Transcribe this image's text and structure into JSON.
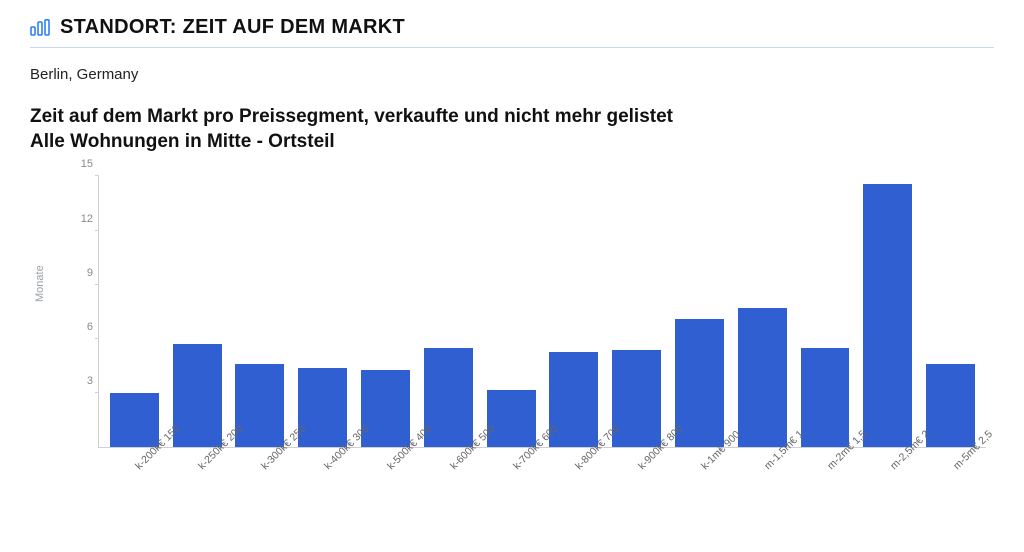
{
  "header": {
    "icon": "bar-chart-icon",
    "icon_color": "#2f7ef6",
    "title": "STANDORT: ZEIT AUF DEM MARKT",
    "rule_color": "#c6d7f2"
  },
  "location": "Berlin, Germany",
  "chart": {
    "type": "bar",
    "title_line1": "Zeit auf dem Markt pro Preissegment, verkaufte und nicht mehr gelistet",
    "title_line2": "Alle Wohnungen in Mitte - Ortsteil",
    "title_fontsize": 19,
    "y_label": "Monate",
    "y_label_fontsize": 11,
    "ylim": [
      0,
      15
    ],
    "ytick_step": 3,
    "yticks": [
      3,
      6,
      9,
      12,
      15
    ],
    "bar_color": "#2f5fd1",
    "background_color": "#ffffff",
    "axis_color": "#d0d0d0",
    "tick_label_color": "#888888",
    "xlabel_color": "#666666",
    "xlabel_fontsize": 10.5,
    "bar_width": 0.78,
    "categories": [
      "150 €k-200k",
      "200 €k-250k",
      "250 €k-300k",
      "300 €k-400k",
      "400 €k-500k",
      "500 €k-600k",
      "600 €k-700k",
      "700 €k-800k",
      "800 €k-900k",
      "900 €k-1m",
      "1 €m-1,5m",
      "1,5 €m-2m",
      "2 €m-2,5m",
      "2,5 €m-5m"
    ],
    "values": [
      3.0,
      5.7,
      4.6,
      4.4,
      4.3,
      5.5,
      3.2,
      5.3,
      5.4,
      7.1,
      7.7,
      5.5,
      14.6,
      4.6
    ]
  }
}
